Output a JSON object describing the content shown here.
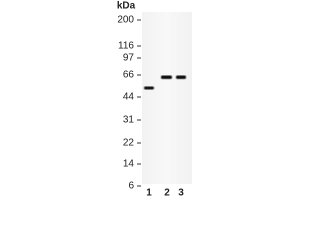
{
  "unit": "kDa",
  "markers": [
    "200",
    "116",
    "97",
    "66",
    "44",
    "31",
    "22",
    "14",
    "6"
  ],
  "lanes": [
    "1",
    "2",
    "3"
  ]
}
